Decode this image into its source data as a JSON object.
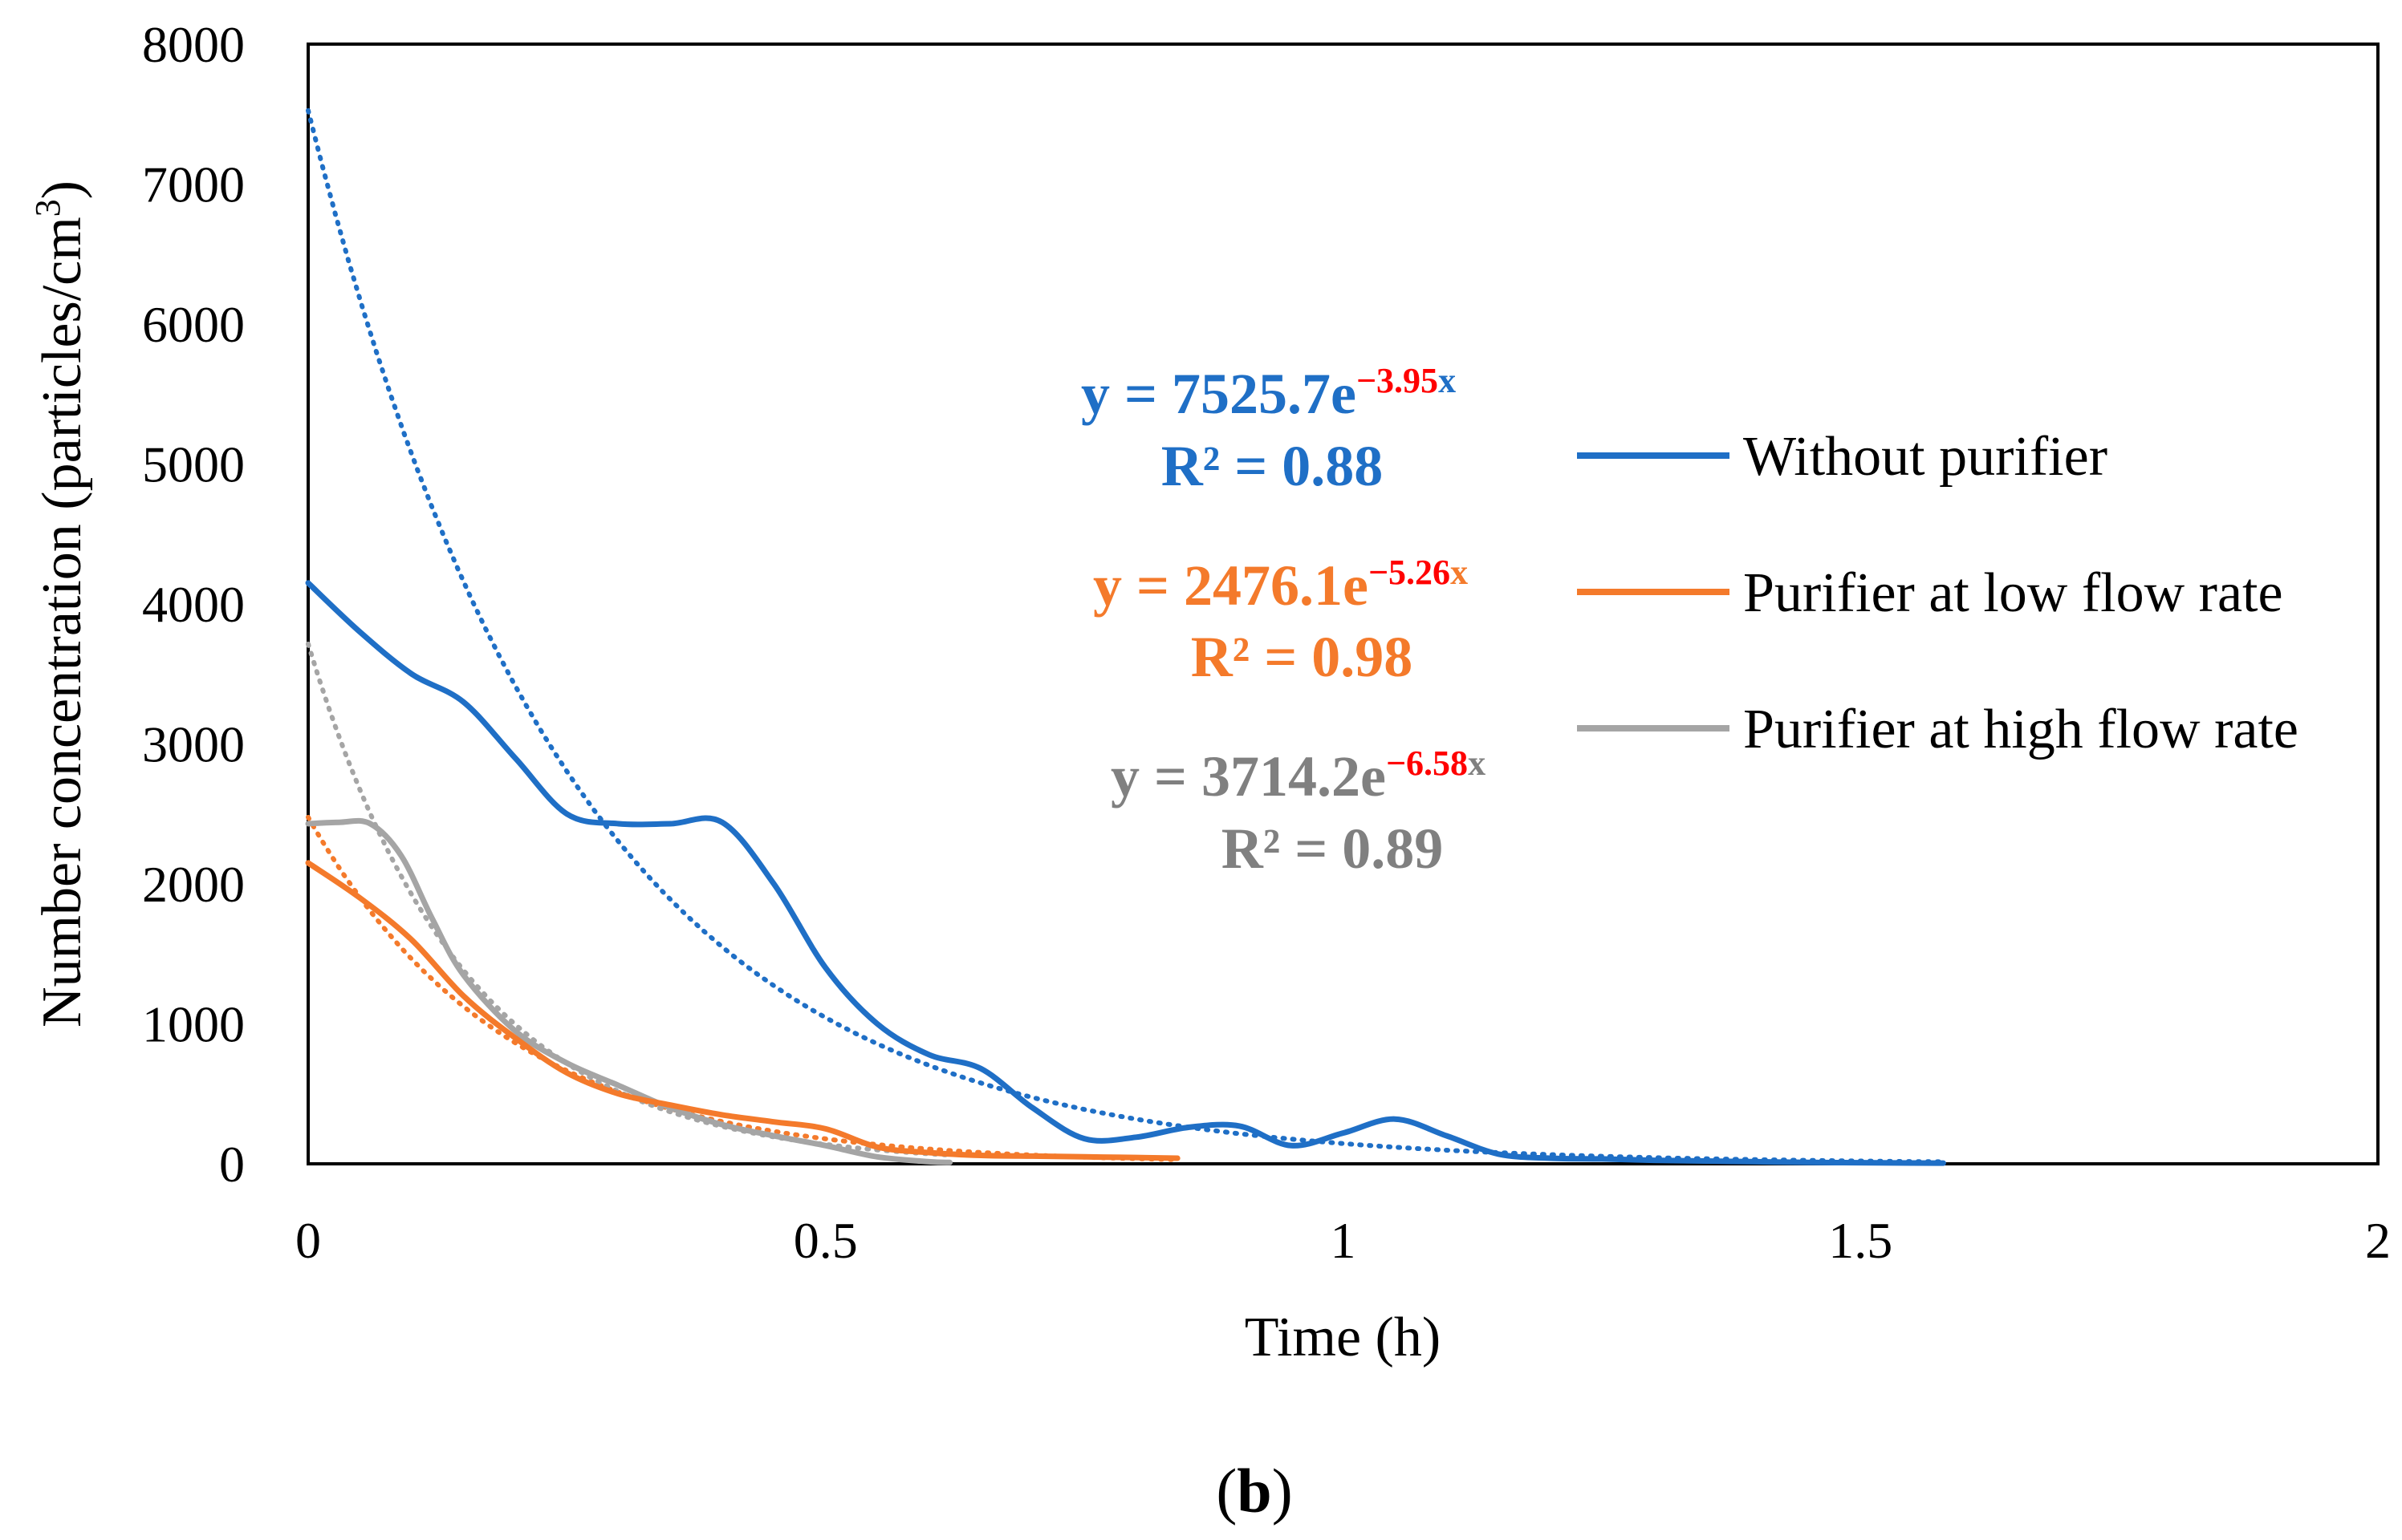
{
  "chart_data": {
    "type": "line",
    "title": "",
    "xlabel": "Time (h)",
    "ylabel": "Number concentration (particles/cm³)",
    "ylabel_base": "Number concentration (particles/cm",
    "ylabel_sup": "3",
    "ylabel_end": ")",
    "xlim": [
      0,
      2
    ],
    "ylim": [
      0,
      8000
    ],
    "x_ticks": [
      0,
      0.5,
      1,
      1.5,
      2
    ],
    "x_tick_labels": [
      "0",
      "0.5",
      "1",
      "1.5",
      "2"
    ],
    "y_ticks": [
      0,
      1000,
      2000,
      3000,
      4000,
      5000,
      6000,
      7000,
      8000
    ],
    "y_tick_labels": [
      "0",
      "1000",
      "2000",
      "3000",
      "4000",
      "5000",
      "6000",
      "7000",
      "8000"
    ],
    "grid": false,
    "legend_position": "right",
    "panel_label": "(b)",
    "panel_label_open": "(",
    "panel_label_letter": "b",
    "panel_label_close": ")",
    "series": [
      {
        "name": "Without purifier",
        "color": "#1F6FC6",
        "x": [
          0,
          0.05,
          0.1,
          0.15,
          0.2,
          0.25,
          0.3,
          0.35,
          0.4,
          0.45,
          0.5,
          0.55,
          0.6,
          0.65,
          0.7,
          0.75,
          0.8,
          0.85,
          0.9,
          0.95,
          1.0,
          1.05,
          1.1,
          1.15,
          1.2,
          1.25,
          1.3,
          1.35,
          1.4,
          1.45,
          1.5,
          1.55,
          1.58
        ],
        "values": [
          4150,
          3800,
          3500,
          3300,
          2900,
          2500,
          2430,
          2430,
          2440,
          2000,
          1400,
          1000,
          780,
          680,
          400,
          180,
          190,
          260,
          270,
          130,
          220,
          320,
          200,
          70,
          40,
          35,
          25,
          20,
          15,
          10,
          8,
          6,
          5
        ],
        "fit": {
          "a": 7525.7,
          "b": 3.95,
          "x_max": 1.58
        },
        "equation": {
          "prefix": "y = 7525.7e",
          "exponent": "−3.95",
          "suffix": "x",
          "r2": "R² = 0.88"
        }
      },
      {
        "name": "Purifier at low flow rate",
        "color": "#F47A2B",
        "x": [
          0,
          0.05,
          0.1,
          0.15,
          0.2,
          0.25,
          0.3,
          0.35,
          0.4,
          0.45,
          0.5,
          0.55,
          0.6,
          0.65,
          0.7,
          0.75,
          0.8,
          0.84
        ],
        "values": [
          2150,
          1900,
          1600,
          1200,
          900,
          650,
          500,
          420,
          350,
          300,
          250,
          120,
          80,
          60,
          55,
          50,
          45,
          40
        ],
        "fit": {
          "a": 2476.1,
          "b": 5.26,
          "x_max": 0.84
        },
        "equation": {
          "prefix": "y = 2476.1e",
          "exponent": "−5.26",
          "suffix": "x",
          "r2": "R² = 0.98"
        }
      },
      {
        "name": "Purifier at high flow rate",
        "color": "#A5A5A5",
        "x": [
          0,
          0.03,
          0.06,
          0.09,
          0.12,
          0.15,
          0.2,
          0.25,
          0.3,
          0.35,
          0.4,
          0.45,
          0.5,
          0.55,
          0.6,
          0.62
        ],
        "values": [
          2430,
          2440,
          2430,
          2200,
          1750,
          1350,
          950,
          720,
          560,
          400,
          280,
          200,
          130,
          50,
          15,
          10
        ],
        "fit": {
          "a": 3714.2,
          "b": 6.58,
          "x_max": 0.62
        },
        "equation": {
          "prefix": "y = 3714.2e",
          "exponent": "−6.58",
          "suffix": "x",
          "r2": "R² = 0.89"
        }
      }
    ],
    "equation_colors": [
      "#1F6FC6",
      "#F47A2B",
      "#808080"
    ],
    "exponent_color": "#FF0000"
  }
}
